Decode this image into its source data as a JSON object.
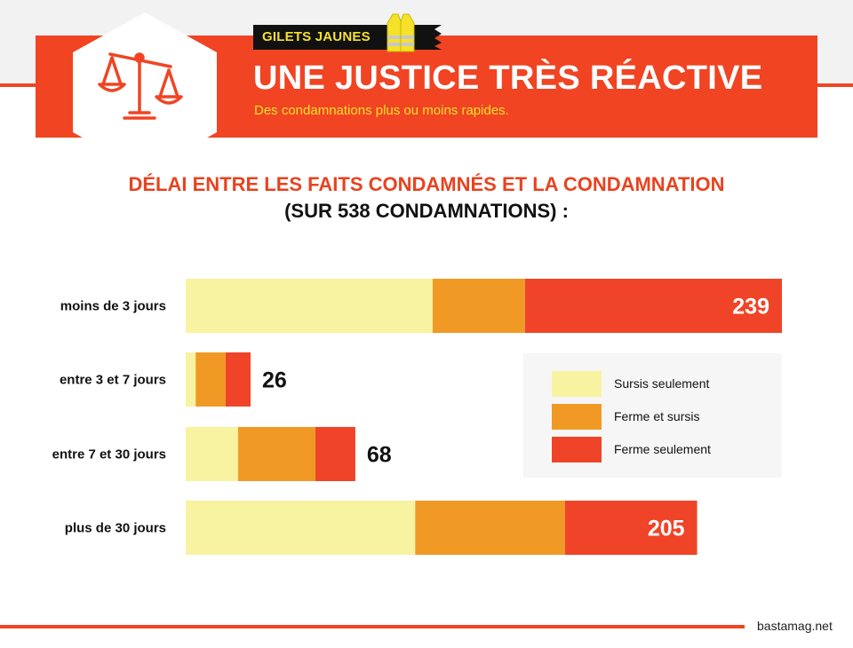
{
  "header": {
    "tag": "GILETS JAUNES",
    "title": "UNE JUSTICE TRÈS RÉACTIVE",
    "subtitle": "Des condamnations plus ou moins rapides.",
    "icons": [
      "scale-icon",
      "yellow-vest-icon"
    ]
  },
  "colors": {
    "accent": "#f04423",
    "highlight": "#f7e12a",
    "sursis": "#f7f3a0",
    "ferme_et_sursis": "#f09a25",
    "ferme": "#ef4427"
  },
  "footer": {
    "source": "bastamag.net"
  },
  "chart_data": {
    "type": "bar",
    "orientation": "horizontal",
    "stacked": true,
    "title": "DÉLAI ENTRE LES FAITS CONDAMNÉS ET LA CONDAMNATION",
    "subtitle": "(SUR 538 CONDAMNATIONS) :",
    "categories": [
      "moins de 3 jours",
      "entre 3 et 7 jours",
      "entre 7 et 30 jours",
      "plus de 30 jours"
    ],
    "series": [
      {
        "name": "Sursis seulement",
        "color": "#f7f3a0",
        "values": [
          99,
          4,
          21,
          92
        ]
      },
      {
        "name": "Ferme et sursis",
        "color": "#f09a25",
        "values": [
          37,
          12,
          31,
          60
        ]
      },
      {
        "name": "Ferme seulement",
        "color": "#ef4427",
        "values": [
          103,
          10,
          16,
          53
        ]
      }
    ],
    "totals": [
      239,
      26,
      68,
      205
    ],
    "xlim": [
      0,
      239
    ],
    "grid": false,
    "legend": "right"
  }
}
